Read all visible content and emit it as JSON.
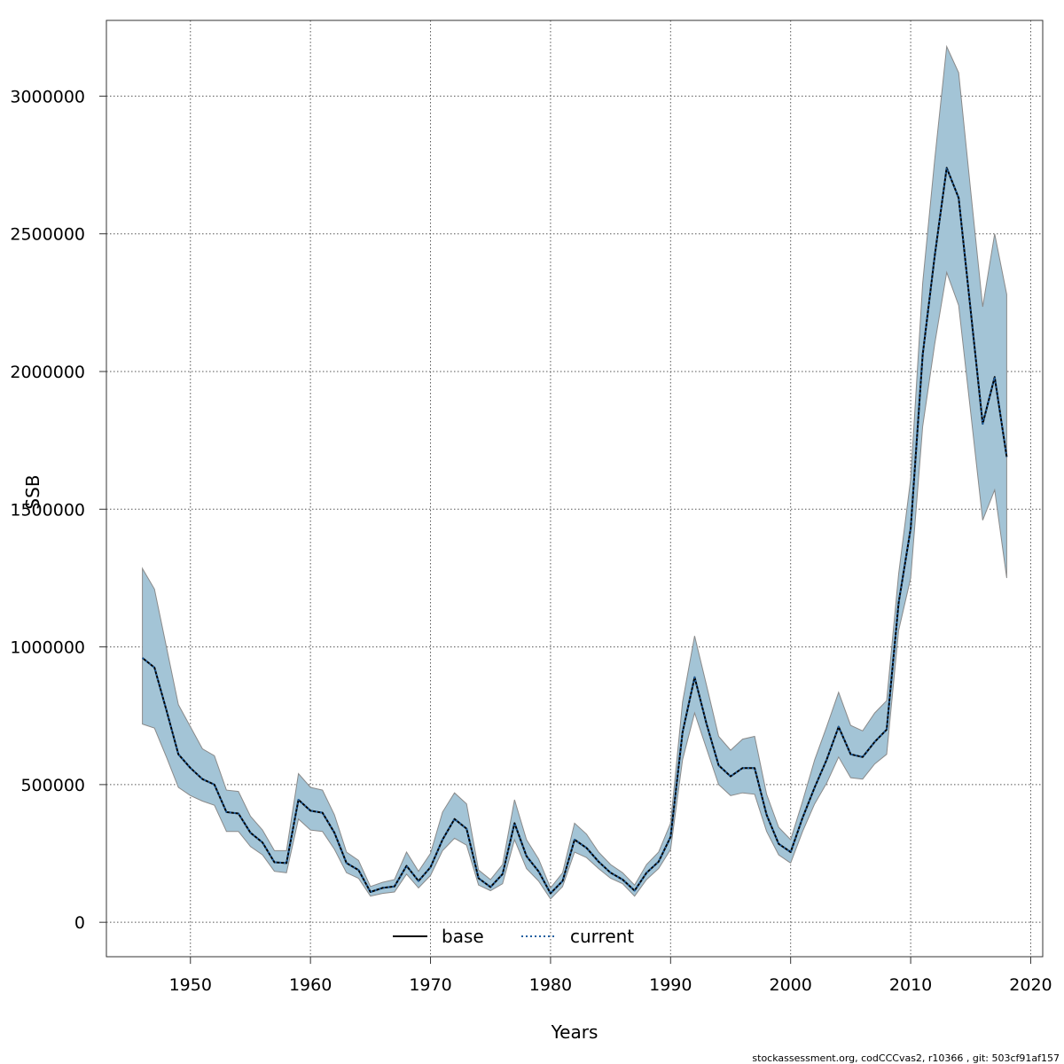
{
  "chart_data": {
    "type": "line",
    "title": "",
    "xlabel": "Years",
    "ylabel": "SSB",
    "xlim": [
      1943,
      2021
    ],
    "ylim": [
      -125000,
      3275000
    ],
    "xticks": [
      1950,
      1960,
      1970,
      1980,
      1990,
      2000,
      2010,
      2020
    ],
    "yticks": [
      0,
      500000,
      1000000,
      1500000,
      2000000,
      2500000,
      3000000
    ],
    "grid": true,
    "legend_position": "bottom-center",
    "band_color": "#a3c4d6",
    "band_edge_color": "#8a8a8a",
    "x": [
      1946,
      1947,
      1948,
      1949,
      1950,
      1951,
      1952,
      1953,
      1954,
      1955,
      1956,
      1957,
      1958,
      1959,
      1960,
      1961,
      1962,
      1963,
      1964,
      1965,
      1966,
      1967,
      1968,
      1969,
      1970,
      1971,
      1972,
      1973,
      1974,
      1975,
      1976,
      1977,
      1978,
      1979,
      1980,
      1981,
      1982,
      1983,
      1984,
      1985,
      1986,
      1987,
      1988,
      1989,
      1990,
      1991,
      1992,
      1993,
      1994,
      1995,
      1996,
      1997,
      1998,
      1999,
      2000,
      2001,
      2002,
      2003,
      2004,
      2005,
      2006,
      2007,
      2008,
      2009,
      2010,
      2011,
      2012,
      2013,
      2014,
      2015,
      2016,
      2017,
      2018
    ],
    "series": [
      {
        "name": "base",
        "color": "#000000",
        "dash": "solid",
        "values": [
          960000,
          925000,
          770000,
          610000,
          560000,
          520000,
          500000,
          400000,
          395000,
          325000,
          290000,
          218000,
          215000,
          445000,
          405000,
          398000,
          325000,
          215000,
          190000,
          110000,
          125000,
          130000,
          205000,
          150000,
          200000,
          300000,
          375000,
          340000,
          160000,
          128000,
          175000,
          360000,
          240000,
          185000,
          105000,
          150000,
          300000,
          270000,
          220000,
          180000,
          155000,
          115000,
          180000,
          220000,
          310000,
          690000,
          890000,
          720000,
          570000,
          530000,
          560000,
          560000,
          390000,
          285000,
          255000,
          380000,
          490000,
          590000,
          710000,
          610000,
          600000,
          655000,
          700000,
          1160000,
          1430000,
          2060000,
          2420000,
          2740000,
          2630000,
          2220000,
          1810000,
          1980000,
          1690000
        ]
      },
      {
        "name": "current",
        "color": "#1f5fa0",
        "dash": "dotted",
        "values": [
          960000,
          925000,
          770000,
          610000,
          560000,
          520000,
          500000,
          400000,
          395000,
          325000,
          290000,
          218000,
          215000,
          445000,
          405000,
          398000,
          325000,
          215000,
          190000,
          110000,
          125000,
          130000,
          205000,
          150000,
          200000,
          300000,
          375000,
          340000,
          160000,
          128000,
          175000,
          360000,
          240000,
          185000,
          105000,
          150000,
          300000,
          270000,
          220000,
          180000,
          155000,
          115000,
          180000,
          220000,
          310000,
          690000,
          890000,
          720000,
          570000,
          530000,
          560000,
          560000,
          390000,
          285000,
          255000,
          380000,
          490000,
          590000,
          710000,
          610000,
          600000,
          655000,
          700000,
          1160000,
          1430000,
          2060000,
          2420000,
          2740000,
          2630000,
          2220000,
          1810000,
          1980000,
          1690000
        ]
      }
    ],
    "band": {
      "lower": [
        720000,
        705000,
        600000,
        490000,
        460000,
        440000,
        425000,
        330000,
        330000,
        275000,
        245000,
        185000,
        180000,
        375000,
        335000,
        330000,
        265000,
        180000,
        160000,
        95000,
        105000,
        110000,
        175000,
        125000,
        170000,
        260000,
        305000,
        280000,
        135000,
        115000,
        140000,
        300000,
        195000,
        150000,
        85000,
        130000,
        255000,
        235000,
        195000,
        160000,
        140000,
        95000,
        155000,
        195000,
        265000,
        590000,
        760000,
        630000,
        500000,
        460000,
        470000,
        465000,
        330000,
        245000,
        215000,
        330000,
        430000,
        505000,
        600000,
        525000,
        520000,
        575000,
        610000,
        1060000,
        1250000,
        1800000,
        2100000,
        2360000,
        2240000,
        1850000,
        1460000,
        1570000,
        1250000
      ],
      "upper": [
        1285000,
        1210000,
        1000000,
        790000,
        710000,
        630000,
        605000,
        480000,
        475000,
        385000,
        335000,
        260000,
        260000,
        540000,
        490000,
        480000,
        390000,
        255000,
        225000,
        130000,
        145000,
        155000,
        255000,
        185000,
        250000,
        400000,
        470000,
        430000,
        190000,
        155000,
        210000,
        445000,
        300000,
        230000,
        125000,
        180000,
        360000,
        320000,
        255000,
        210000,
        180000,
        135000,
        210000,
        255000,
        360000,
        800000,
        1040000,
        860000,
        675000,
        625000,
        665000,
        675000,
        465000,
        345000,
        300000,
        440000,
        590000,
        710000,
        835000,
        715000,
        695000,
        760000,
        805000,
        1265000,
        1610000,
        2320000,
        2770000,
        3180000,
        3085000,
        2655000,
        2235000,
        2500000,
        2280000
      ]
    }
  },
  "footer": {
    "text": "stockassessment.org, codCCCvas2, r10366 , git: 503cf91af157"
  }
}
